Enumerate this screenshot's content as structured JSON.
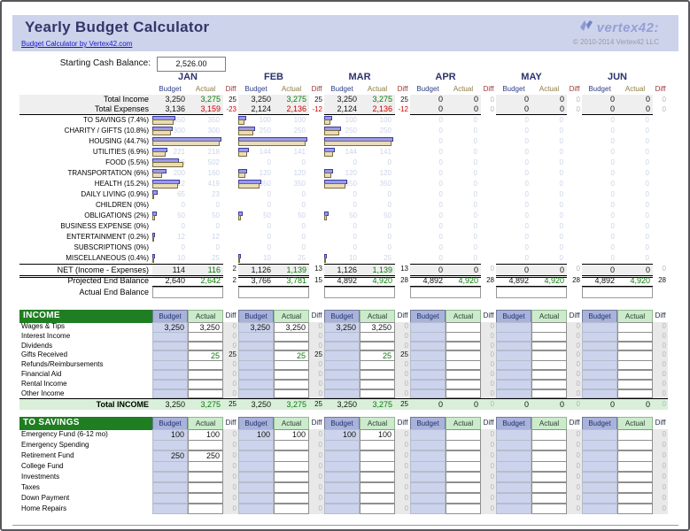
{
  "header": {
    "title": "Yearly Budget Calculator",
    "link": "Budget Calculator by Vertex42.com",
    "logo": "vertex42:",
    "copyright": "© 2010-2014 Vertex42 LLC"
  },
  "starting_cash": {
    "label": "Starting Cash Balance:",
    "value": "2,526.00"
  },
  "months": [
    "JAN",
    "FEB",
    "MAR",
    "APR",
    "MAY",
    "JUN"
  ],
  "subheaders": {
    "budget": "Budget",
    "actual": "Actual",
    "diff": "Diff"
  },
  "summary": {
    "income_label": "Total Income",
    "expenses_label": "Total Expenses",
    "income": [
      [
        "3,250",
        "3,275",
        "25"
      ],
      [
        "3,250",
        "3,275",
        "25"
      ],
      [
        "3,250",
        "3,275",
        "25"
      ],
      [
        "0",
        "0",
        "0"
      ],
      [
        "0",
        "0",
        "0"
      ],
      [
        "0",
        "0",
        "0"
      ]
    ],
    "expenses": [
      [
        "3,136",
        "3,159",
        "-23"
      ],
      [
        "2,124",
        "2,136",
        "-12"
      ],
      [
        "2,124",
        "2,136",
        "-12"
      ],
      [
        "0",
        "0",
        "0"
      ],
      [
        "0",
        "0",
        "0"
      ],
      [
        "0",
        "0",
        "0"
      ]
    ]
  },
  "chart_data": {
    "type": "bar",
    "orientation": "horizontal",
    "max_value": 1100,
    "colors": {
      "budget_bar": "#9a9aec",
      "actual_bar": "#e9dcb7"
    },
    "categories": [
      "TO SAVINGS (7.4%)",
      "CHARITY / GIFTS (10.8%)",
      "HOUSING (44.7%)",
      "UTILITIES (6.9%)",
      "FOOD (5.5%)",
      "TRANSPORTATION (6%)",
      "HEALTH (15.2%)",
      "DAILY LIVING (0.9%)",
      "CHILDREN (0%)",
      "OBLIGATIONS (2%)",
      "BUSINESS EXPENSE (0%)",
      "ENTERTAINMENT (0.2%)",
      "SUBSCRIPTIONS (0%)",
      "MISCELLANEOUS (0.4%)"
    ],
    "series": [
      {
        "month": "JAN",
        "budget": [
          350,
          300,
          1100,
          221,
          406,
          200,
          422,
          65,
          0,
          50,
          0,
          12,
          0,
          10
        ],
        "actual": [
          350,
          300,
          1100,
          218,
          502,
          160,
          419,
          23,
          0,
          50,
          0,
          12,
          0,
          25
        ]
      },
      {
        "month": "FEB",
        "budget": [
          100,
          250,
          1100,
          144,
          0,
          120,
          350,
          0,
          0,
          50,
          0,
          0,
          0,
          10
        ],
        "actual": [
          100,
          250,
          1100,
          141,
          0,
          120,
          350,
          0,
          0,
          50,
          0,
          0,
          0,
          25
        ]
      },
      {
        "month": "MAR",
        "budget": [
          100,
          250,
          1100,
          144,
          0,
          120,
          350,
          0,
          0,
          50,
          0,
          0,
          0,
          10
        ],
        "actual": [
          100,
          250,
          1100,
          141,
          0,
          120,
          350,
          0,
          0,
          50,
          0,
          0,
          0,
          25
        ]
      },
      {
        "month": "APR",
        "budget": [
          0,
          0,
          0,
          0,
          0,
          0,
          0,
          0,
          0,
          0,
          0,
          0,
          0,
          0
        ],
        "actual": [
          0,
          0,
          0,
          0,
          0,
          0,
          0,
          0,
          0,
          0,
          0,
          0,
          0,
          0
        ]
      },
      {
        "month": "MAY",
        "budget": [
          0,
          0,
          0,
          0,
          0,
          0,
          0,
          0,
          0,
          0,
          0,
          0,
          0,
          0
        ],
        "actual": [
          0,
          0,
          0,
          0,
          0,
          0,
          0,
          0,
          0,
          0,
          0,
          0,
          0,
          0
        ]
      },
      {
        "month": "JUN",
        "budget": [
          0,
          0,
          0,
          0,
          0,
          0,
          0,
          0,
          0,
          0,
          0,
          0,
          0,
          0
        ],
        "actual": [
          0,
          0,
          0,
          0,
          0,
          0,
          0,
          0,
          0,
          0,
          0,
          0,
          0,
          0
        ]
      }
    ]
  },
  "balances": {
    "net_label": "NET (Income - Expenses)",
    "net": [
      [
        "114",
        "116",
        "2"
      ],
      [
        "1,126",
        "1,139",
        "13"
      ],
      [
        "1,126",
        "1,139",
        "13"
      ],
      [
        "0",
        "0",
        "0"
      ],
      [
        "0",
        "0",
        "0"
      ],
      [
        "0",
        "0",
        "0"
      ]
    ],
    "projected_label": "Projected End Balance",
    "projected": [
      [
        "2,640",
        "2,642",
        "2"
      ],
      [
        "3,766",
        "3,781",
        "15"
      ],
      [
        "4,892",
        "4,920",
        "28"
      ],
      [
        "4,892",
        "4,920",
        "28"
      ],
      [
        "4,892",
        "4,920",
        "28"
      ],
      [
        "4,892",
        "4,920",
        "28"
      ]
    ],
    "actual_label": "Actual End Balance",
    "actual": [
      "",
      "",
      "",
      "",
      "",
      ""
    ]
  },
  "income": {
    "header": "INCOME",
    "rows": [
      {
        "label": "Wages & Tips",
        "cells": [
          [
            "3,250",
            "3,250",
            "0"
          ],
          [
            "3,250",
            "3,250",
            "0"
          ],
          [
            "3,250",
            "3,250",
            "0"
          ],
          [
            "",
            "",
            "0"
          ],
          [
            "",
            "",
            "0"
          ],
          [
            "",
            "",
            "0"
          ]
        ]
      },
      {
        "label": "Interest Income",
        "cells": [
          [
            "",
            "",
            "0"
          ],
          [
            "",
            "",
            "0"
          ],
          [
            "",
            "",
            "0"
          ],
          [
            "",
            "",
            "0"
          ],
          [
            "",
            "",
            "0"
          ],
          [
            "",
            "",
            "0"
          ]
        ]
      },
      {
        "label": "Dividends",
        "cells": [
          [
            "",
            "",
            "0"
          ],
          [
            "",
            "",
            "0"
          ],
          [
            "",
            "",
            "0"
          ],
          [
            "",
            "",
            "0"
          ],
          [
            "",
            "",
            "0"
          ],
          [
            "",
            "",
            "0"
          ]
        ]
      },
      {
        "label": "Gifts Received",
        "cells": [
          [
            "",
            "25",
            "25"
          ],
          [
            "",
            "25",
            "25"
          ],
          [
            "",
            "25",
            "25"
          ],
          [
            "",
            "",
            "0"
          ],
          [
            "",
            "",
            "0"
          ],
          [
            "",
            "",
            "0"
          ]
        ]
      },
      {
        "label": "Refunds/Reimbursements",
        "cells": [
          [
            "",
            "",
            "0"
          ],
          [
            "",
            "",
            "0"
          ],
          [
            "",
            "",
            "0"
          ],
          [
            "",
            "",
            "0"
          ],
          [
            "",
            "",
            "0"
          ],
          [
            "",
            "",
            "0"
          ]
        ]
      },
      {
        "label": "Financial Aid",
        "cells": [
          [
            "",
            "",
            "0"
          ],
          [
            "",
            "",
            "0"
          ],
          [
            "",
            "",
            "0"
          ],
          [
            "",
            "",
            "0"
          ],
          [
            "",
            "",
            "0"
          ],
          [
            "",
            "",
            "0"
          ]
        ]
      },
      {
        "label": "Rental Income",
        "cells": [
          [
            "",
            "",
            "0"
          ],
          [
            "",
            "",
            "0"
          ],
          [
            "",
            "",
            "0"
          ],
          [
            "",
            "",
            "0"
          ],
          [
            "",
            "",
            "0"
          ],
          [
            "",
            "",
            "0"
          ]
        ]
      },
      {
        "label": "Other Income",
        "cells": [
          [
            "",
            "",
            "0"
          ],
          [
            "",
            "",
            "0"
          ],
          [
            "",
            "",
            "0"
          ],
          [
            "",
            "",
            "0"
          ],
          [
            "",
            "",
            "0"
          ],
          [
            "",
            "",
            "0"
          ]
        ]
      }
    ],
    "total_label": "Total INCOME",
    "total": [
      [
        "3,250",
        "3,275",
        "25"
      ],
      [
        "3,250",
        "3,275",
        "25"
      ],
      [
        "3,250",
        "3,275",
        "25"
      ],
      [
        "0",
        "0",
        "0"
      ],
      [
        "0",
        "0",
        "0"
      ],
      [
        "0",
        "0",
        "0"
      ]
    ]
  },
  "savings": {
    "header": "TO SAVINGS",
    "rows": [
      {
        "label": "Emergency Fund (6-12 mo)",
        "cells": [
          [
            "100",
            "100",
            "0"
          ],
          [
            "100",
            "100",
            "0"
          ],
          [
            "100",
            "100",
            "0"
          ],
          [
            "",
            "",
            "0"
          ],
          [
            "",
            "",
            "0"
          ],
          [
            "",
            "",
            "0"
          ]
        ]
      },
      {
        "label": "Emergency Spending",
        "cells": [
          [
            "",
            "",
            "0"
          ],
          [
            "",
            "",
            "0"
          ],
          [
            "",
            "",
            "0"
          ],
          [
            "",
            "",
            "0"
          ],
          [
            "",
            "",
            "0"
          ],
          [
            "",
            "",
            "0"
          ]
        ]
      },
      {
        "label": "Retirement Fund",
        "cells": [
          [
            "250",
            "250",
            "0"
          ],
          [
            "",
            "",
            "0"
          ],
          [
            "",
            "",
            "0"
          ],
          [
            "",
            "",
            "0"
          ],
          [
            "",
            "",
            "0"
          ],
          [
            "",
            "",
            "0"
          ]
        ]
      },
      {
        "label": "College Fund",
        "cells": [
          [
            "",
            "",
            "0"
          ],
          [
            "",
            "",
            "0"
          ],
          [
            "",
            "",
            "0"
          ],
          [
            "",
            "",
            "0"
          ],
          [
            "",
            "",
            "0"
          ],
          [
            "",
            "",
            "0"
          ]
        ]
      },
      {
        "label": "Investments",
        "cells": [
          [
            "",
            "",
            "0"
          ],
          [
            "",
            "",
            "0"
          ],
          [
            "",
            "",
            "0"
          ],
          [
            "",
            "",
            "0"
          ],
          [
            "",
            "",
            "0"
          ],
          [
            "",
            "",
            "0"
          ]
        ]
      },
      {
        "label": "Taxes",
        "cells": [
          [
            "",
            "",
            "0"
          ],
          [
            "",
            "",
            "0"
          ],
          [
            "",
            "",
            "0"
          ],
          [
            "",
            "",
            "0"
          ],
          [
            "",
            "",
            "0"
          ],
          [
            "",
            "",
            "0"
          ]
        ]
      },
      {
        "label": "Down Payment",
        "cells": [
          [
            "",
            "",
            "0"
          ],
          [
            "",
            "",
            "0"
          ],
          [
            "",
            "",
            "0"
          ],
          [
            "",
            "",
            "0"
          ],
          [
            "",
            "",
            "0"
          ],
          [
            "",
            "",
            "0"
          ]
        ]
      },
      {
        "label": "Home Repairs",
        "cells": [
          [
            "",
            "",
            "0"
          ],
          [
            "",
            "",
            "0"
          ],
          [
            "",
            "",
            "0"
          ],
          [
            "",
            "",
            "0"
          ],
          [
            "",
            "",
            "0"
          ],
          [
            "",
            "",
            "0"
          ]
        ]
      }
    ]
  },
  "colors": {
    "header_band": "#cdd3ea",
    "title_text": "#31366b",
    "section_header_green": "#1f7e22",
    "budget_header_cell": "#a9b3da",
    "actual_header_cell": "#cdeacd",
    "budget_input_cell": "#ccd3ec",
    "total_row_green": "#d9efd9",
    "positive_green": "#0a7a0a",
    "negative_red": "#cf0000",
    "faint_value": "#ccd4e9"
  }
}
